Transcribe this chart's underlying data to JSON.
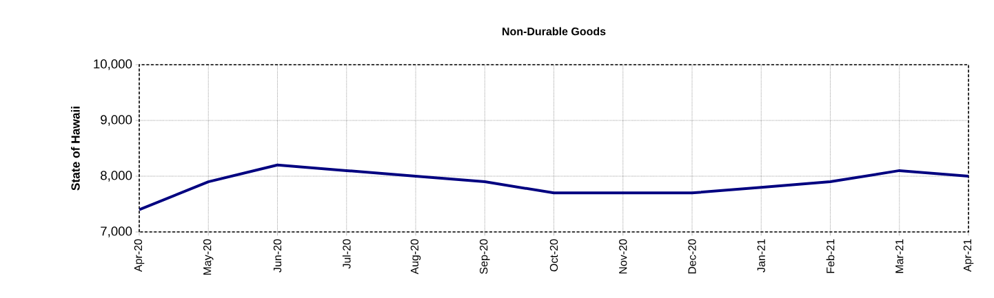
{
  "chart_data": {
    "type": "line",
    "title": "Non-Durable Goods",
    "ylabel": "State of Hawaii",
    "categories": [
      "Apr-20",
      "May-20",
      "Jun-20",
      "Jul-20",
      "Aug-20",
      "Sep-20",
      "Oct-20",
      "Nov-20",
      "Dec-20",
      "Jan-21",
      "Feb-21",
      "Mar-21",
      "Apr-21"
    ],
    "series": [
      {
        "color": "#000080",
        "values": [
          7400,
          7900,
          8200,
          8100,
          8000,
          7900,
          7700,
          7700,
          7700,
          7800,
          7900,
          8100,
          8000
        ]
      }
    ],
    "ylim": [
      7000,
      10000
    ],
    "yticks": [
      {
        "value": 7000,
        "label": "7,000"
      },
      {
        "value": 8000,
        "label": "8,000"
      },
      {
        "value": 9000,
        "label": "9,000"
      },
      {
        "value": 10000,
        "label": "10,000"
      }
    ],
    "grid": true,
    "marker": "none",
    "line_style": "solid"
  }
}
